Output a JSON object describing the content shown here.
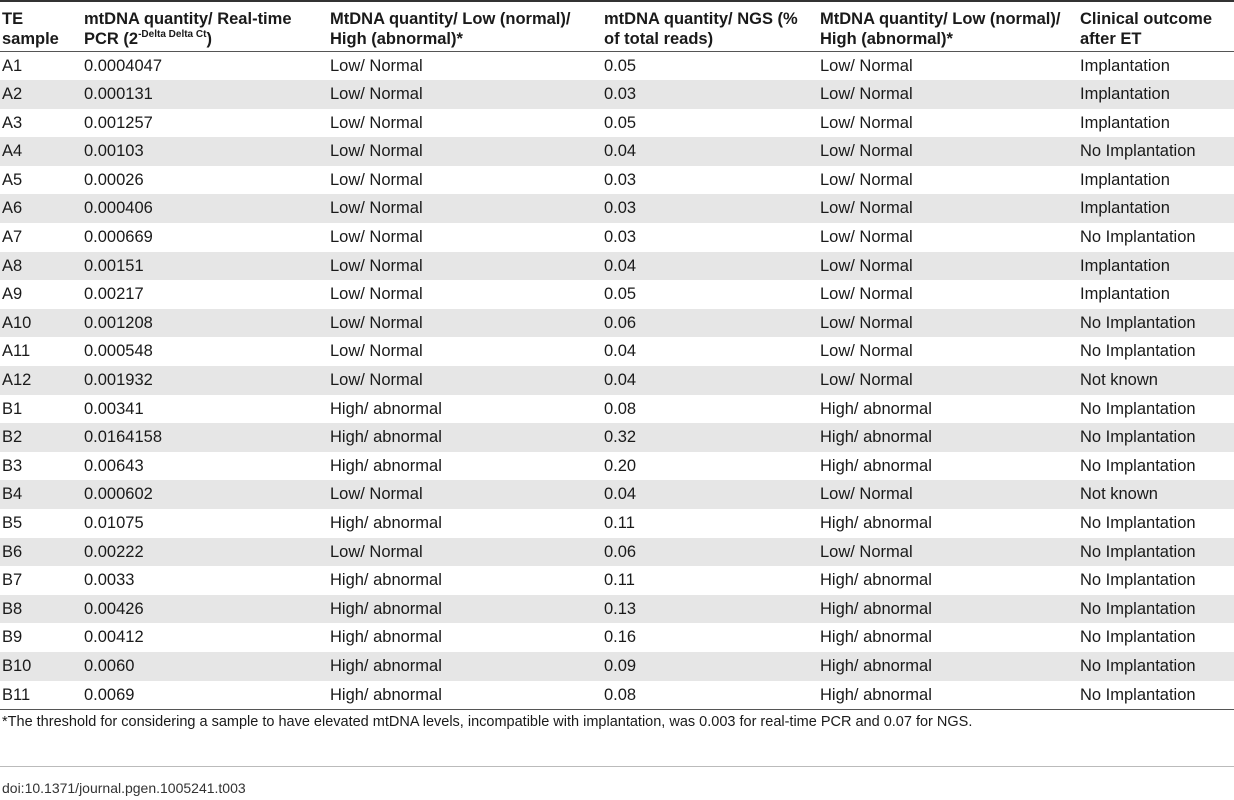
{
  "table": {
    "headers": {
      "sample": "TE sample",
      "pcr_value_prefix": "mtDNA quantity/ Real-time PCR (2",
      "pcr_value_sup": "-Delta Delta Ct",
      "pcr_value_suffix": ")",
      "pcr_class": "MtDNA quantity/ Low (normal)/ High (abnormal)*",
      "ngs_value": "mtDNA quantity/ NGS (% of total reads)",
      "ngs_class": "MtDNA quantity/ Low (normal)/ High (abnormal)*",
      "outcome": "Clinical outcome after ET"
    },
    "rows": [
      [
        "A1",
        "0.0004047",
        "Low/ Normal",
        "0.05",
        "Low/ Normal",
        "Implantation"
      ],
      [
        "A2",
        "0.000131",
        "Low/ Normal",
        "0.03",
        "Low/ Normal",
        "Implantation"
      ],
      [
        "A3",
        "0.001257",
        "Low/ Normal",
        "0.05",
        "Low/ Normal",
        "Implantation"
      ],
      [
        "A4",
        "0.00103",
        "Low/ Normal",
        "0.04",
        "Low/ Normal",
        "No Implantation"
      ],
      [
        "A5",
        "0.00026",
        "Low/ Normal",
        "0.03",
        "Low/ Normal",
        "Implantation"
      ],
      [
        "A6",
        "0.000406",
        "Low/ Normal",
        "0.03",
        "Low/ Normal",
        "Implantation"
      ],
      [
        "A7",
        "0.000669",
        "Low/ Normal",
        "0.03",
        "Low/ Normal",
        "No Implantation"
      ],
      [
        "A8",
        "0.00151",
        "Low/ Normal",
        "0.04",
        "Low/ Normal",
        "Implantation"
      ],
      [
        "A9",
        "0.00217",
        "Low/ Normal",
        "0.05",
        "Low/ Normal",
        "Implantation"
      ],
      [
        "A10",
        "0.001208",
        "Low/ Normal",
        "0.06",
        "Low/ Normal",
        "No Implantation"
      ],
      [
        "A11",
        "0.000548",
        "Low/ Normal",
        "0.04",
        "Low/ Normal",
        "No Implantation"
      ],
      [
        "A12",
        "0.001932",
        "Low/ Normal",
        "0.04",
        "Low/ Normal",
        "Not known"
      ],
      [
        "B1",
        "0.00341",
        "High/ abnormal",
        "0.08",
        "High/ abnormal",
        "No Implantation"
      ],
      [
        "B2",
        "0.0164158",
        "High/ abnormal",
        "0.32",
        "High/ abnormal",
        "No Implantation"
      ],
      [
        "B3",
        "0.00643",
        "High/ abnormal",
        "0.20",
        "High/ abnormal",
        "No Implantation"
      ],
      [
        "B4",
        "0.000602",
        "Low/ Normal",
        "0.04",
        "Low/ Normal",
        "Not known"
      ],
      [
        "B5",
        "0.01075",
        "High/ abnormal",
        "0.11",
        "High/ abnormal",
        "No Implantation"
      ],
      [
        "B6",
        "0.00222",
        "Low/ Normal",
        "0.06",
        "Low/ Normal",
        "No Implantation"
      ],
      [
        "B7",
        "0.0033",
        "High/ abnormal",
        "0.11",
        "High/ abnormal",
        "No Implantation"
      ],
      [
        "B8",
        "0.00426",
        "High/ abnormal",
        "0.13",
        "High/ abnormal",
        "No Implantation"
      ],
      [
        "B9",
        "0.00412",
        "High/ abnormal",
        "0.16",
        "High/ abnormal",
        "No Implantation"
      ],
      [
        "B10",
        "0.0060",
        "High/ abnormal",
        "0.09",
        "High/ abnormal",
        "No Implantation"
      ],
      [
        "B11",
        "0.0069",
        "High/ abnormal",
        "0.08",
        "High/ abnormal",
        "No Implantation"
      ]
    ]
  },
  "footnote": "*The threshold for considering a sample to have elevated mtDNA levels, incompatible with implantation, was 0.003 for real-time PCR and 0.07 for NGS.",
  "doi": "doi:10.1371/journal.pgen.1005241.t003",
  "colors": {
    "stripe": "#e6e6e6",
    "rule": "#333333"
  }
}
